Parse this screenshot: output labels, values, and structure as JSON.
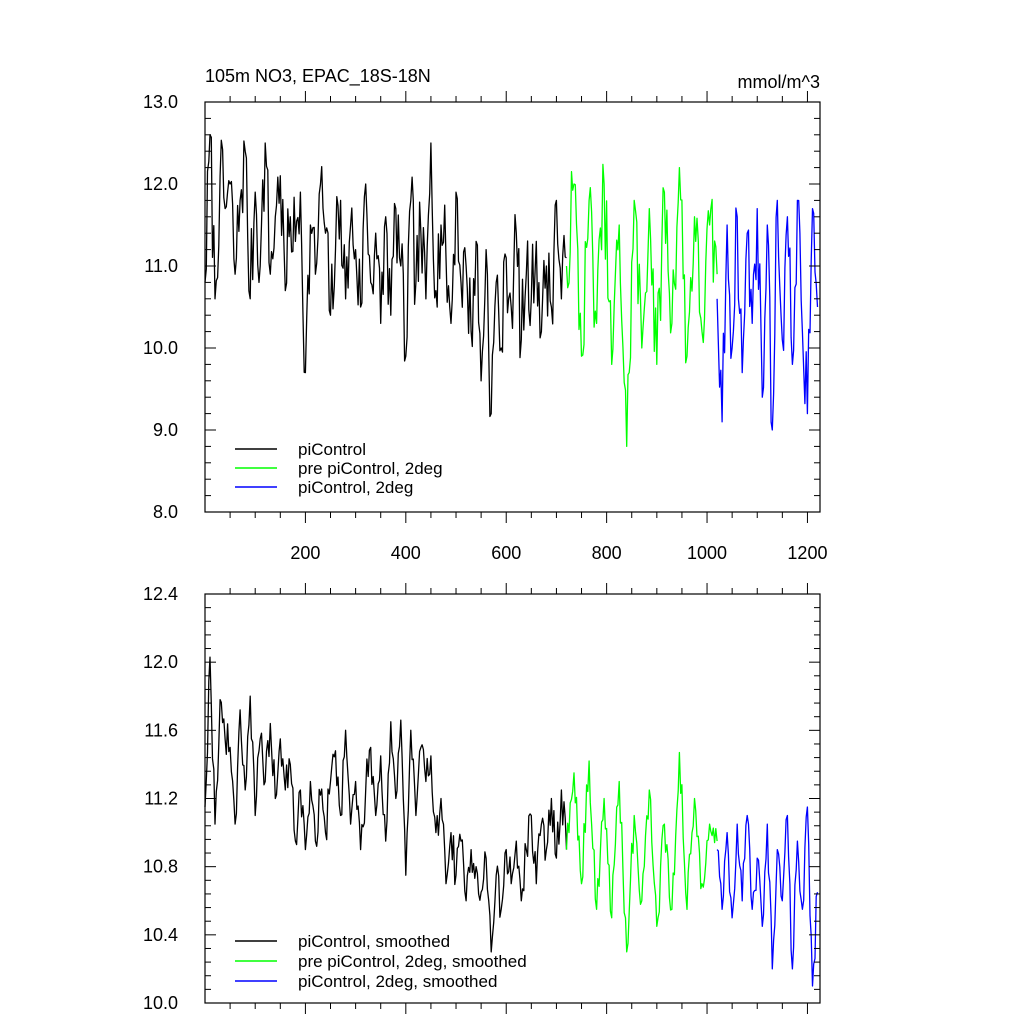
{
  "chart_data": [
    {
      "type": "line",
      "title": "105m NO3, EPAC_18S-18N",
      "units": "mmol/m^3",
      "xlim": [
        0,
        1225
      ],
      "ylim": [
        8.0,
        13.0
      ],
      "x_ticks": [
        200,
        400,
        600,
        800,
        1000,
        1200
      ],
      "x_tick_labels": [
        "200",
        "400",
        "600",
        "800",
        "1000",
        "1200"
      ],
      "y_ticks": [
        8.0,
        9.0,
        10.0,
        11.0,
        12.0,
        13.0
      ],
      "y_tick_labels": [
        "8.0",
        "9.0",
        "10.0",
        "11.0",
        "12.0",
        "13.0"
      ],
      "legend_position": "bottom-left",
      "grid": false,
      "series": [
        {
          "name": "piControl",
          "color": "#000000",
          "x": [
            0,
            10,
            20,
            30,
            40,
            50,
            60,
            70,
            80,
            90,
            100,
            110,
            120,
            130,
            140,
            150,
            160,
            170,
            180,
            190,
            200,
            210,
            220,
            230,
            240,
            250,
            260,
            270,
            280,
            290,
            300,
            310,
            320,
            330,
            340,
            350,
            360,
            370,
            380,
            390,
            400,
            410,
            420,
            430,
            440,
            450,
            460,
            470,
            480,
            490,
            500,
            510,
            520,
            530,
            540,
            550,
            560,
            570,
            580,
            590,
            600,
            610,
            620,
            630,
            640,
            650,
            660,
            670,
            680,
            690,
            700,
            710,
            720
          ],
          "values": [
            10.8,
            12.6,
            10.6,
            12.1,
            11.7,
            12.0,
            10.9,
            11.8,
            12.4,
            10.6,
            11.9,
            11.0,
            12.5,
            10.9,
            11.6,
            12.1,
            10.7,
            11.6,
            11.3,
            11.9,
            9.7,
            11.5,
            10.9,
            12.0,
            11.4,
            10.4,
            11.2,
            11.8,
            10.6,
            11.5,
            11.2,
            10.5,
            12.0,
            10.8,
            11.4,
            10.3,
            11.6,
            10.4,
            11.7,
            11.0,
            9.9,
            11.8,
            10.8,
            11.4,
            10.6,
            12.5,
            10.7,
            11.5,
            11.1,
            10.3,
            11.9,
            10.8,
            11.0,
            10.2,
            11.3,
            9.6,
            11.2,
            9.2,
            10.8,
            10.0,
            11.1,
            10.5,
            11.4,
            10.1,
            10.9,
            10.6,
            11.3,
            10.2,
            11.0,
            10.5,
            11.8,
            10.6,
            11.1
          ]
        },
        {
          "name": "pre piControl, 2deg",
          "color": "#00ff00",
          "x": [
            720,
            735,
            750,
            765,
            780,
            795,
            810,
            825,
            840,
            855,
            870,
            885,
            900,
            915,
            930,
            945,
            960,
            975,
            990,
            1005,
            1020
          ],
          "values": [
            11.0,
            12.0,
            9.9,
            11.8,
            10.3,
            12.0,
            9.8,
            11.5,
            8.8,
            11.8,
            10.0,
            11.7,
            9.8,
            11.9,
            10.3,
            12.2,
            9.9,
            11.6,
            10.2,
            11.5,
            10.9
          ]
        },
        {
          "name": "piControl, 2deg",
          "color": "#0000ff",
          "x": [
            1020,
            1030,
            1040,
            1050,
            1060,
            1070,
            1080,
            1090,
            1100,
            1110,
            1120,
            1130,
            1140,
            1150,
            1160,
            1170,
            1180,
            1190,
            1200,
            1210,
            1220
          ],
          "values": [
            10.6,
            9.1,
            11.5,
            10.0,
            11.6,
            9.7,
            11.4,
            10.3,
            11.7,
            9.4,
            11.5,
            9.0,
            11.8,
            10.1,
            11.6,
            9.8,
            11.8,
            10.2,
            9.2,
            11.7,
            10.5
          ]
        }
      ]
    },
    {
      "type": "line",
      "xlim": [
        0,
        1225
      ],
      "ylim": [
        10.0,
        12.4
      ],
      "y_ticks": [
        10.0,
        10.4,
        10.8,
        11.2,
        11.6,
        12.0,
        12.4
      ],
      "y_tick_labels": [
        "10.0",
        "10.4",
        "10.8",
        "11.2",
        "11.6",
        "12.0",
        "12.4"
      ],
      "legend_position": "bottom-left",
      "grid": false,
      "series": [
        {
          "name": "piControl, smoothed",
          "color": "#000000",
          "x": [
            0,
            10,
            20,
            30,
            40,
            50,
            60,
            70,
            80,
            90,
            100,
            110,
            120,
            130,
            140,
            150,
            160,
            170,
            180,
            190,
            200,
            210,
            220,
            230,
            240,
            250,
            260,
            270,
            280,
            290,
            300,
            310,
            320,
            330,
            340,
            350,
            360,
            370,
            380,
            390,
            400,
            410,
            420,
            430,
            440,
            450,
            460,
            470,
            480,
            490,
            500,
            510,
            520,
            530,
            540,
            550,
            560,
            570,
            580,
            590,
            600,
            610,
            620,
            630,
            640,
            650,
            660,
            670,
            680,
            690,
            700,
            710,
            720
          ],
          "values": [
            11.15,
            12.03,
            11.05,
            11.78,
            11.55,
            11.5,
            11.05,
            11.72,
            11.25,
            11.8,
            11.1,
            11.55,
            11.3,
            11.64,
            11.2,
            11.55,
            11.25,
            11.4,
            10.95,
            11.25,
            10.9,
            11.3,
            10.95,
            11.22,
            11.0,
            11.3,
            11.48,
            11.1,
            11.6,
            11.05,
            11.3,
            10.9,
            11.25,
            11.5,
            11.1,
            11.45,
            10.95,
            11.65,
            11.2,
            11.66,
            10.75,
            11.6,
            11.1,
            11.5,
            11.3,
            11.45,
            11.0,
            11.2,
            10.7,
            11.0,
            10.75,
            10.95,
            10.6,
            10.9,
            10.8,
            10.65,
            10.85,
            10.3,
            10.75,
            10.55,
            10.9,
            10.7,
            10.95,
            10.6,
            10.9,
            11.1,
            10.7,
            11.05,
            10.9,
            11.2,
            10.85,
            11.25,
            10.9
          ]
        },
        {
          "name": "pre piControl, 2deg, smoothed",
          "color": "#00ff00",
          "x": [
            720,
            735,
            750,
            765,
            780,
            795,
            810,
            825,
            840,
            855,
            870,
            885,
            900,
            915,
            930,
            945,
            960,
            975,
            990,
            1005,
            1020
          ],
          "values": [
            10.9,
            11.35,
            10.7,
            11.42,
            10.55,
            11.2,
            10.5,
            11.3,
            10.3,
            11.1,
            10.6,
            11.25,
            10.45,
            11.05,
            10.55,
            11.47,
            10.55,
            11.2,
            10.7,
            11.05,
            10.95
          ]
        },
        {
          "name": "piControl, 2deg, smoothed",
          "color": "#0000ff",
          "x": [
            1020,
            1030,
            1040,
            1050,
            1060,
            1070,
            1080,
            1090,
            1100,
            1110,
            1120,
            1130,
            1140,
            1150,
            1160,
            1170,
            1180,
            1190,
            1200,
            1210,
            1220
          ],
          "values": [
            10.9,
            10.55,
            11.0,
            10.5,
            11.05,
            10.6,
            11.1,
            10.55,
            10.85,
            10.45,
            11.05,
            10.2,
            10.9,
            10.6,
            11.1,
            10.2,
            10.95,
            10.55,
            11.15,
            10.1,
            10.65
          ]
        }
      ]
    }
  ]
}
